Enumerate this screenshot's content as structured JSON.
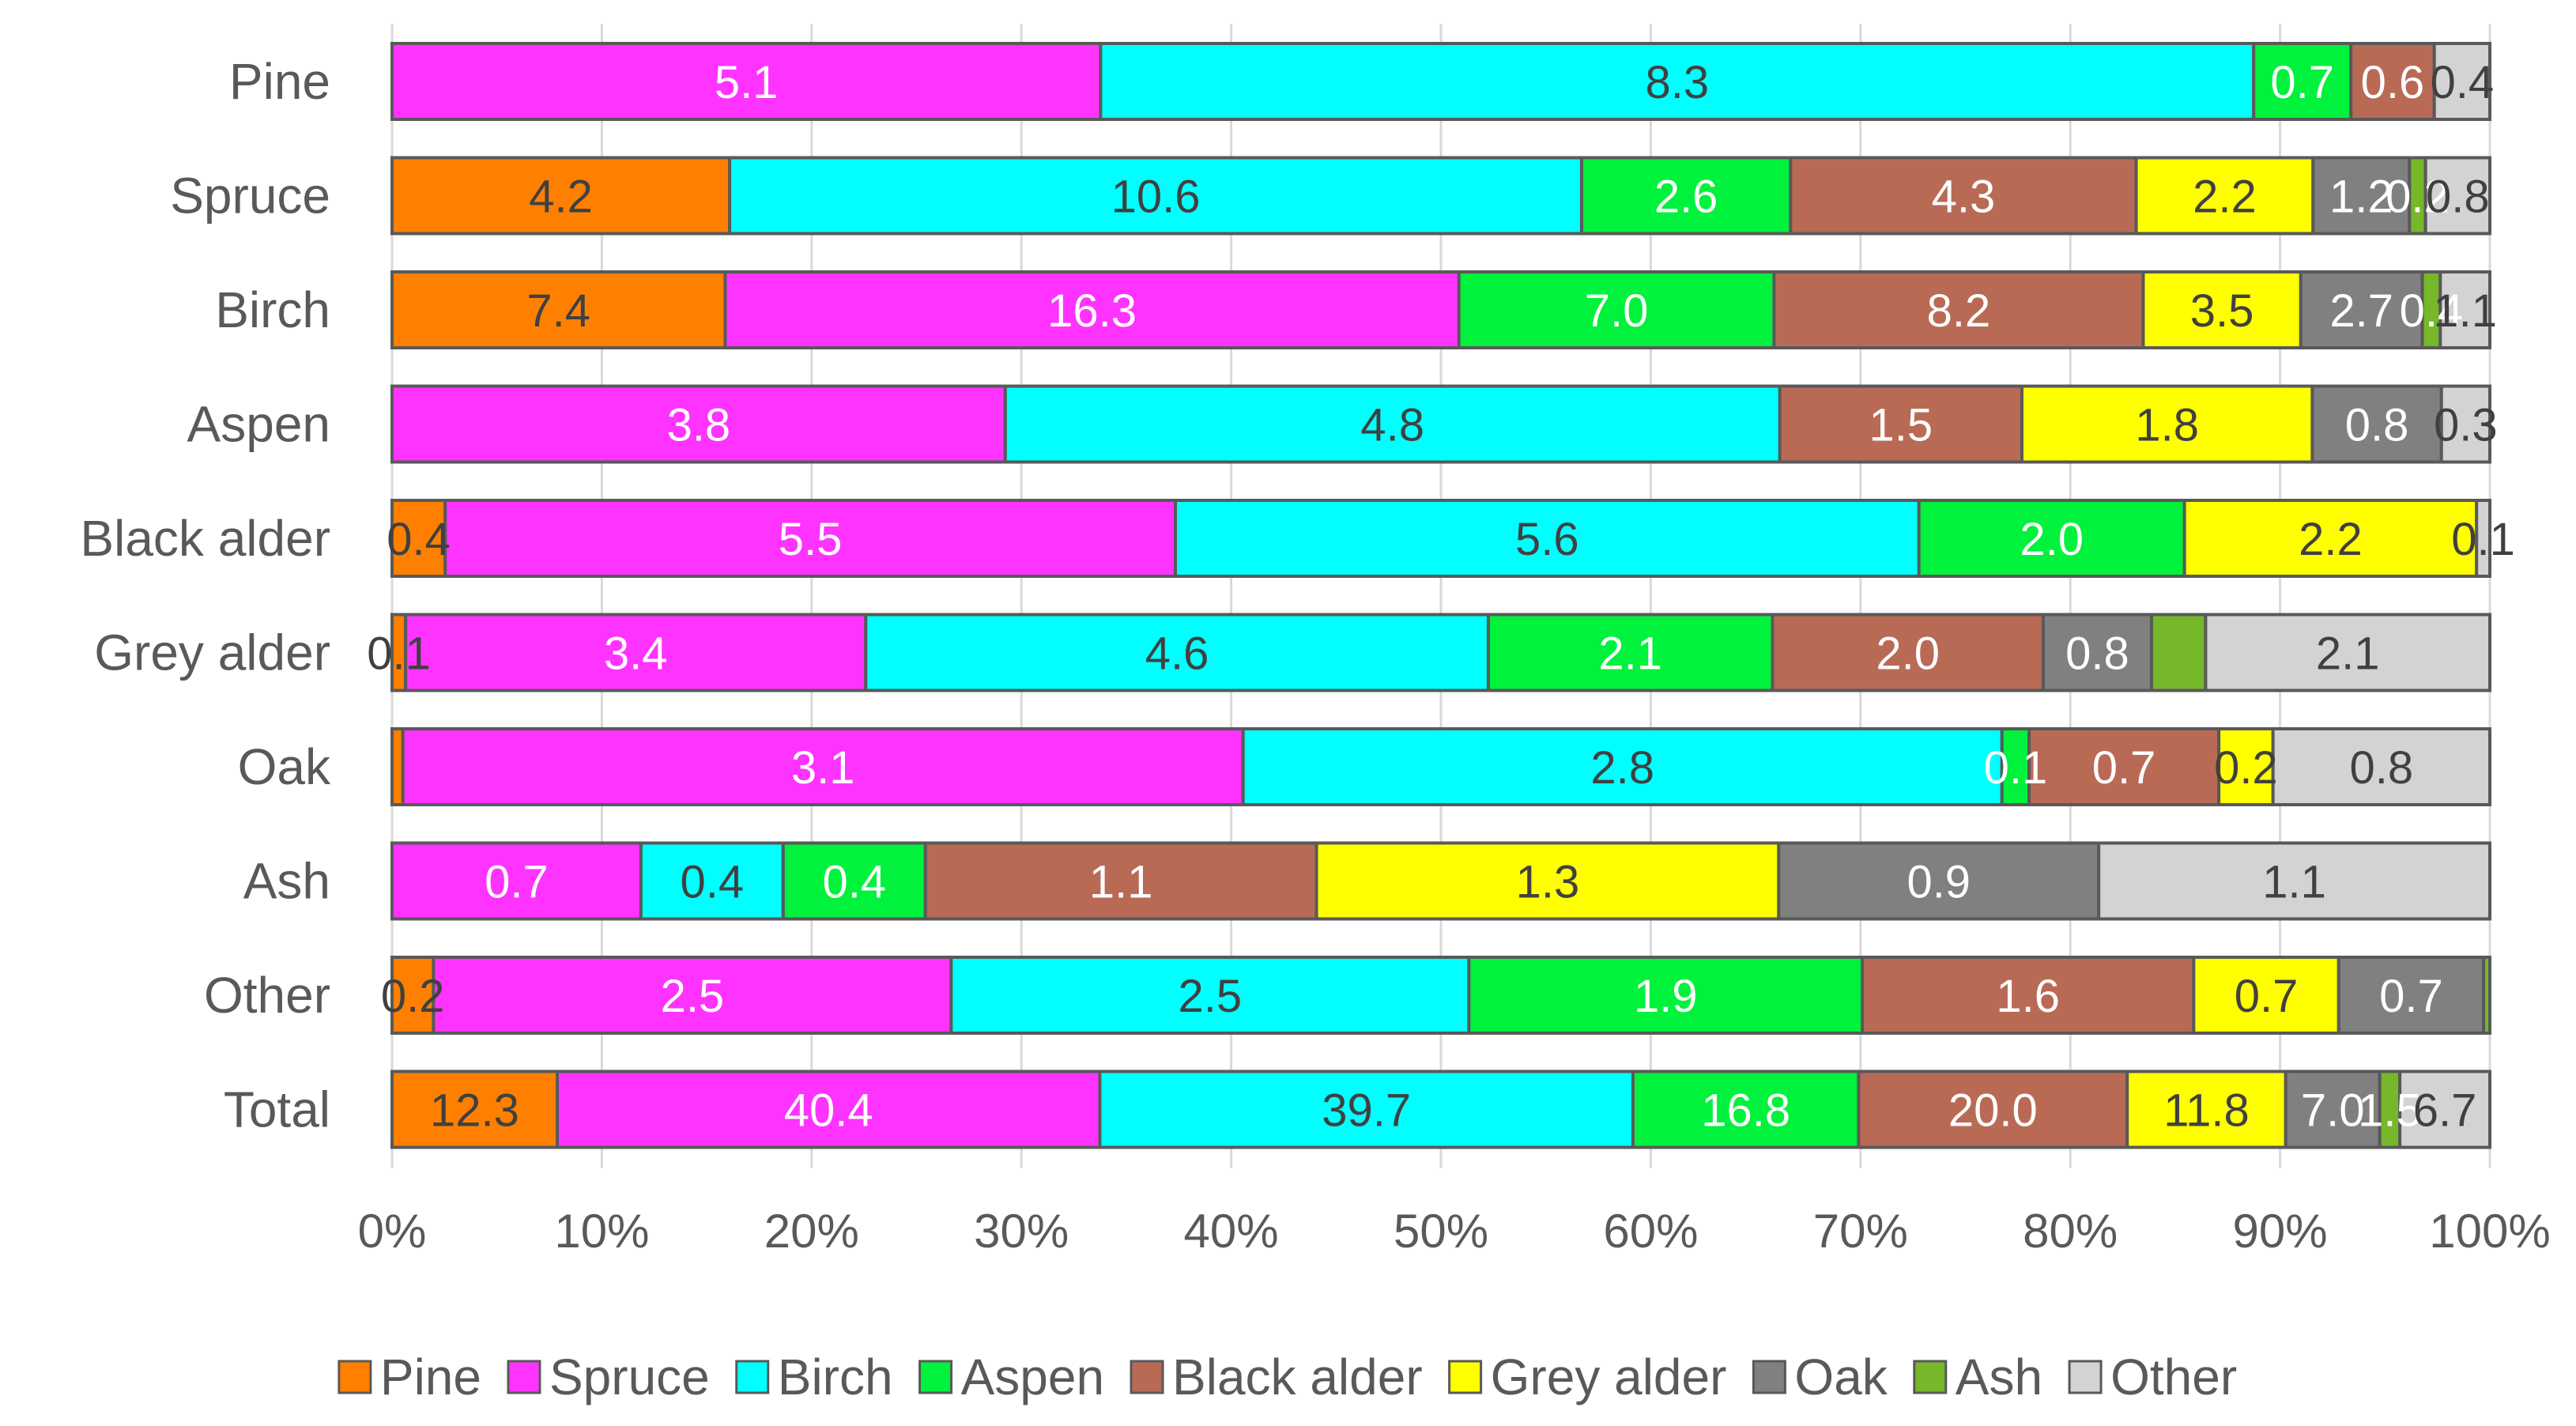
{
  "chart_data": {
    "type": "bar",
    "orientation": "horizontal",
    "stacked": "percent",
    "title": "",
    "xlabel": "",
    "ylabel": "",
    "xlim": [
      0,
      100
    ],
    "x_ticks": [
      "0%",
      "10%",
      "20%",
      "30%",
      "40%",
      "50%",
      "60%",
      "70%",
      "80%",
      "90%",
      "100%"
    ],
    "grid": true,
    "legend_position": "bottom",
    "categories": [
      "Pine",
      "Spruce",
      "Birch",
      "Aspen",
      "Black alder",
      "Grey alder",
      "Oak",
      "Ash",
      "Other",
      "Total"
    ],
    "series": [
      {
        "name": "Pine",
        "color": "#FF8000",
        "values": [
          null,
          4.2,
          7.4,
          null,
          0.4,
          0.1,
          0.04,
          null,
          0.2,
          12.3
        ],
        "labels": [
          "",
          "4.2",
          "7.4",
          "",
          "0.4",
          "0.1",
          "",
          "",
          "0.2",
          "12.3"
        ]
      },
      {
        "name": "Spruce",
        "color": "#FF33FF",
        "values": [
          5.1,
          null,
          16.3,
          3.8,
          5.5,
          3.4,
          3.1,
          0.7,
          2.5,
          40.4
        ],
        "labels": [
          "5.1",
          "",
          "16.3",
          "3.8",
          "5.5",
          "3.4",
          "3.1",
          "0.7",
          "2.5",
          "40.4"
        ]
      },
      {
        "name": "Birch",
        "color": "#00FFFF",
        "values": [
          8.3,
          10.6,
          null,
          4.8,
          5.6,
          4.6,
          2.8,
          0.4,
          2.5,
          39.7
        ],
        "labels": [
          "8.3",
          "10.6",
          "",
          "4.8",
          "5.6",
          "4.6",
          "2.8",
          "0.4",
          "2.5",
          "39.7"
        ]
      },
      {
        "name": "Aspen",
        "color": "#00F23C",
        "values": [
          0.7,
          2.6,
          7.0,
          null,
          2.0,
          2.1,
          0.1,
          0.4,
          1.9,
          16.8
        ],
        "labels": [
          "0.7",
          "2.6",
          "7.0",
          "",
          "2.0",
          "2.1",
          "0.1",
          "0.4",
          "1.9",
          "16.8"
        ]
      },
      {
        "name": "Black alder",
        "color": "#B96A55",
        "values": [
          0.6,
          4.3,
          8.2,
          1.5,
          null,
          2.0,
          0.7,
          1.1,
          1.6,
          20.0
        ],
        "labels": [
          "0.6",
          "4.3",
          "8.2",
          "1.5",
          "",
          "2.0",
          "0.7",
          "1.1",
          "1.6",
          "20.0"
        ]
      },
      {
        "name": "Grey alder",
        "color": "#FFFF00",
        "values": [
          null,
          2.2,
          3.5,
          1.8,
          2.2,
          null,
          0.2,
          1.3,
          0.7,
          11.8
        ],
        "labels": [
          "",
          "2.2",
          "3.5",
          "1.8",
          "2.2",
          "",
          "0.2",
          "1.3",
          "0.7",
          "11.8"
        ]
      },
      {
        "name": "Oak",
        "color": "#808080",
        "values": [
          null,
          1.2,
          2.7,
          0.8,
          null,
          0.8,
          null,
          0.9,
          0.7,
          7.0
        ],
        "labels": [
          "",
          "1.2",
          "2.7",
          "0.8",
          "",
          "0.8",
          "",
          "0.9",
          "0.7",
          "7.0"
        ]
      },
      {
        "name": "Ash",
        "color": "#76B82A",
        "values": [
          null,
          0.2,
          0.4,
          null,
          null,
          0.4,
          null,
          null,
          0.03,
          1.5
        ],
        "labels": [
          "",
          "0.2",
          "0.4",
          "",
          "",
          "",
          "",
          "",
          "",
          "1.5"
        ]
      },
      {
        "name": "Other",
        "color": "#D3D3D3",
        "values": [
          0.4,
          0.8,
          1.1,
          0.3,
          0.1,
          2.1,
          0.8,
          1.1,
          null,
          6.7
        ],
        "labels": [
          "0.4",
          "0.8",
          "1.1",
          "0.3",
          "0.1",
          "2.1",
          "0.8",
          "1.1",
          "",
          "6.7"
        ]
      }
    ]
  }
}
